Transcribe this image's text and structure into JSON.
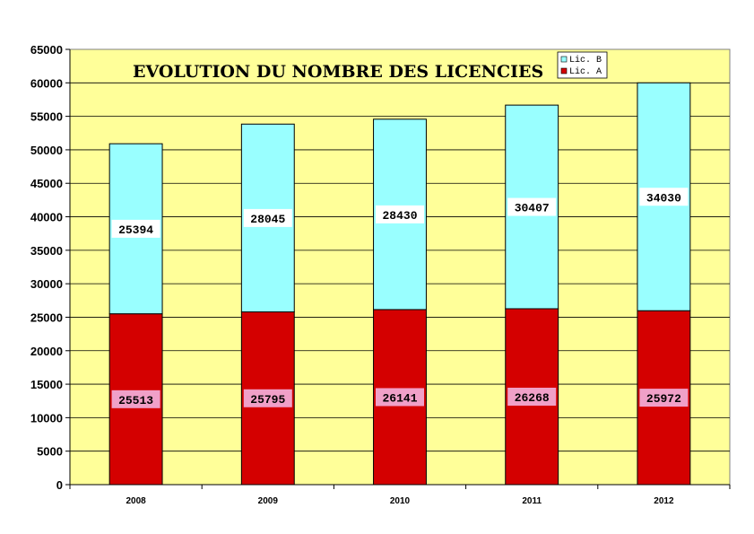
{
  "chart_data": {
    "type": "bar",
    "stacked": true,
    "title": "EVOLUTION DU NOMBRE DES LICENCIES",
    "categories": [
      "2008",
      "2009",
      "2010",
      "2011",
      "2012"
    ],
    "series": [
      {
        "name": "Lic. A",
        "color": "#d40000",
        "label_bg": "#f0a0c8",
        "values": [
          25513,
          25795,
          26141,
          26268,
          25972
        ]
      },
      {
        "name": "Lic. B",
        "color": "#99ffff",
        "label_bg": "#ffffff",
        "values": [
          25394,
          28045,
          28430,
          30407,
          34030
        ]
      }
    ],
    "ylim": [
      0,
      65000
    ],
    "ytick_step": 5000,
    "grid": true,
    "legend_position": "top-right",
    "legend_order": [
      "Lic. B",
      "Lic. A"
    ],
    "plot_background": "#ffff99"
  }
}
